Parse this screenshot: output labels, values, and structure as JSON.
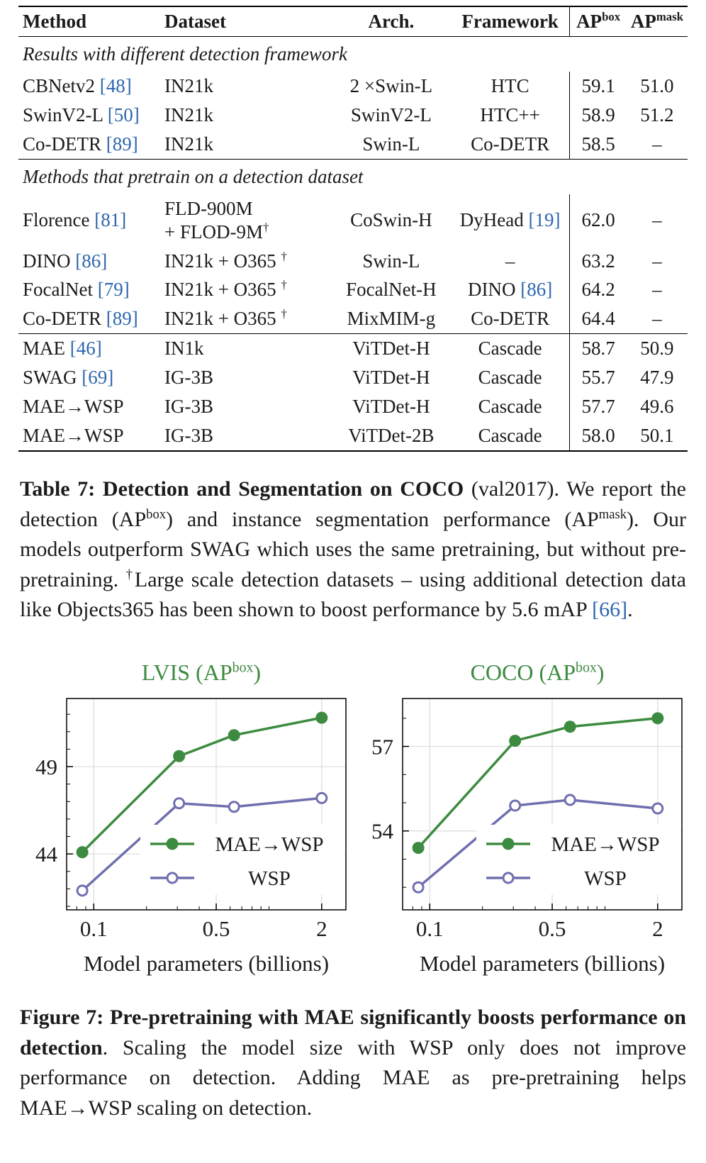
{
  "colors": {
    "citation_blue": "#2d66ae",
    "chart_title_green": "#3d8b40",
    "mae_wsp_green": "#3d8b40",
    "wsp_purple": "#6f6fb0",
    "gridline_gray": "#dcdcdc"
  },
  "table": {
    "headers": [
      {
        "runs": [
          {
            "t": "Method",
            "b": true
          }
        ]
      },
      {
        "runs": [
          {
            "t": "Dataset",
            "b": true
          }
        ]
      },
      {
        "runs": [
          {
            "t": "Arch.",
            "b": true
          }
        ]
      },
      {
        "runs": [
          {
            "t": "Framework",
            "b": true
          }
        ]
      },
      {
        "runs": [
          {
            "t": "AP",
            "b": true
          },
          {
            "t": "box",
            "b": true,
            "sup": true
          }
        ]
      },
      {
        "runs": [
          {
            "t": "AP",
            "b": true
          },
          {
            "t": "mask",
            "b": true,
            "sup": true
          }
        ]
      }
    ],
    "sections": [
      {
        "title": "Results with different detection framework",
        "rows": [
          {
            "cells": [
              [
                {
                  "t": "CBNetv2 "
                },
                {
                  "t": "[48]",
                  "cite": true
                }
              ],
              [
                {
                  "t": "IN21k"
                }
              ],
              [
                {
                  "t": "2 ×Swin-L"
                }
              ],
              [
                {
                  "t": "HTC"
                }
              ],
              [
                {
                  "t": "59.1"
                }
              ],
              [
                {
                  "t": "51.0"
                }
              ]
            ]
          },
          {
            "cells": [
              [
                {
                  "t": "SwinV2-L "
                },
                {
                  "t": "[50]",
                  "cite": true
                }
              ],
              [
                {
                  "t": "IN21k"
                }
              ],
              [
                {
                  "t": "SwinV2-L"
                }
              ],
              [
                {
                  "t": "HTC++"
                }
              ],
              [
                {
                  "t": "58.9"
                }
              ],
              [
                {
                  "t": "51.2"
                }
              ]
            ]
          },
          {
            "cells": [
              [
                {
                  "t": "Co-DETR "
                },
                {
                  "t": "[89]",
                  "cite": true
                }
              ],
              [
                {
                  "t": "IN21k"
                }
              ],
              [
                {
                  "t": "Swin-L"
                }
              ],
              [
                {
                  "t": "Co-DETR"
                }
              ],
              [
                {
                  "t": "58.5"
                }
              ],
              [
                {
                  "t": "–"
                }
              ]
            ]
          }
        ]
      },
      {
        "title": "Methods that pretrain on a detection dataset",
        "rows": [
          {
            "cells": [
              [
                {
                  "t": "Florence "
                },
                {
                  "t": "[81]",
                  "cite": true
                }
              ],
              [
                {
                  "t": "FLD-900M"
                },
                {
                  "br": true
                },
                {
                  "t": "+ FLOD-9M"
                },
                {
                  "t": "†",
                  "sup": true
                }
              ],
              [
                {
                  "t": "CoSwin-H"
                }
              ],
              [
                {
                  "t": "DyHead "
                },
                {
                  "t": "[19]",
                  "cite": true
                }
              ],
              [
                {
                  "t": "62.0"
                }
              ],
              [
                {
                  "t": "–"
                }
              ]
            ]
          },
          {
            "cells": [
              [
                {
                  "t": "DINO "
                },
                {
                  "t": "[86]",
                  "cite": true
                }
              ],
              [
                {
                  "t": "IN21k + O365 "
                },
                {
                  "t": "†",
                  "sup": true
                }
              ],
              [
                {
                  "t": "Swin-L"
                }
              ],
              [
                {
                  "t": "–"
                }
              ],
              [
                {
                  "t": "63.2"
                }
              ],
              [
                {
                  "t": "–"
                }
              ]
            ]
          },
          {
            "cells": [
              [
                {
                  "t": "FocalNet "
                },
                {
                  "t": "[79]",
                  "cite": true
                }
              ],
              [
                {
                  "t": "IN21k + O365 "
                },
                {
                  "t": "†",
                  "sup": true
                }
              ],
              [
                {
                  "t": "FocalNet-H"
                }
              ],
              [
                {
                  "t": "DINO "
                },
                {
                  "t": "[86]",
                  "cite": true
                }
              ],
              [
                {
                  "t": "64.2"
                }
              ],
              [
                {
                  "t": "–"
                }
              ]
            ]
          },
          {
            "cells": [
              [
                {
                  "t": "Co-DETR "
                },
                {
                  "t": "[89]",
                  "cite": true
                }
              ],
              [
                {
                  "t": "IN21k + O365 "
                },
                {
                  "t": "†",
                  "sup": true
                }
              ],
              [
                {
                  "t": "MixMIM-g"
                }
              ],
              [
                {
                  "t": "Co-DETR"
                }
              ],
              [
                {
                  "t": "64.4"
                }
              ],
              [
                {
                  "t": "–"
                }
              ]
            ]
          }
        ]
      },
      {
        "title": null,
        "rows": [
          {
            "cells": [
              [
                {
                  "t": "MAE "
                },
                {
                  "t": "[46]",
                  "cite": true
                }
              ],
              [
                {
                  "t": "IN1k"
                }
              ],
              [
                {
                  "t": "ViTDet-H"
                }
              ],
              [
                {
                  "t": "Cascade"
                }
              ],
              [
                {
                  "t": "58.7"
                }
              ],
              [
                {
                  "t": "50.9"
                }
              ]
            ]
          },
          {
            "cells": [
              [
                {
                  "t": "SWAG "
                },
                {
                  "t": "[69]",
                  "cite": true
                }
              ],
              [
                {
                  "t": "IG-3B"
                }
              ],
              [
                {
                  "t": "ViTDet-H"
                }
              ],
              [
                {
                  "t": "Cascade"
                }
              ],
              [
                {
                  "t": "55.7"
                }
              ],
              [
                {
                  "t": "47.9"
                }
              ]
            ]
          },
          {
            "cells": [
              [
                {
                  "t": "MAE→WSP"
                }
              ],
              [
                {
                  "t": "IG-3B"
                }
              ],
              [
                {
                  "t": "ViTDet-H"
                }
              ],
              [
                {
                  "t": "Cascade"
                }
              ],
              [
                {
                  "t": "57.7"
                }
              ],
              [
                {
                  "t": "49.6"
                }
              ]
            ]
          },
          {
            "cells": [
              [
                {
                  "t": "MAE→WSP"
                }
              ],
              [
                {
                  "t": "IG-3B"
                }
              ],
              [
                {
                  "t": "ViTDet-2B"
                }
              ],
              [
                {
                  "t": "Cascade"
                }
              ],
              [
                {
                  "t": "58.0"
                }
              ],
              [
                {
                  "t": "50.1"
                }
              ]
            ]
          }
        ]
      }
    ]
  },
  "table_caption": {
    "runs": [
      {
        "t": "Table 7: ",
        "b": true
      },
      {
        "t": "Detection and Segmentation on COCO",
        "b": true
      },
      {
        "t": " (val2017). We report the detection (AP"
      },
      {
        "t": "box",
        "sup": true
      },
      {
        "t": ") and instance segmentation performance (AP"
      },
      {
        "t": "mask",
        "sup": true
      },
      {
        "t": "). Our models outperform SWAG which uses the same pretraining, but without pre-pretraining. "
      },
      {
        "t": "†",
        "sup": true
      },
      {
        "t": "Large scale detection datasets – using additional detection data like Objects365 has been shown to boost performance by 5.6 mAP "
      },
      {
        "t": "[66]",
        "cite": true
      },
      {
        "t": "."
      }
    ]
  },
  "chart_data": [
    {
      "type": "line",
      "title": "LVIS (AP box)",
      "title_runs": [
        {
          "t": "LVIS (AP"
        },
        {
          "t": "box",
          "sup": true
        },
        {
          "t": ")"
        }
      ],
      "xlabel": "Model parameters (billions)",
      "xscale": "log",
      "x": [
        0.086,
        0.307,
        0.632,
        2.0
      ],
      "xlim": [
        0.07,
        2.75
      ],
      "ylim": [
        40.8,
        52.9
      ],
      "xticks": [
        0.1,
        0.5,
        2
      ],
      "xminor": [
        0.08,
        0.09,
        0.2,
        0.3,
        0.4,
        0.6,
        0.7,
        0.8,
        0.9,
        1
      ],
      "yticks": [
        44,
        49
      ],
      "grid": "major",
      "legend_position": "lower right",
      "series": [
        {
          "name": "MAE→WSP",
          "values": [
            44.1,
            49.6,
            50.8,
            51.8
          ],
          "color": "#3d8b40",
          "marker": "filled"
        },
        {
          "name": "WSP",
          "values": [
            41.9,
            46.9,
            46.7,
            47.2
          ],
          "color": "#6f6fb0",
          "marker": "open"
        }
      ]
    },
    {
      "type": "line",
      "title": "COCO (AP box)",
      "title_runs": [
        {
          "t": "COCO (AP"
        },
        {
          "t": "box",
          "sup": true
        },
        {
          "t": ")"
        }
      ],
      "xlabel": "Model parameters (billions)",
      "xscale": "log",
      "x": [
        0.086,
        0.307,
        0.632,
        2.0
      ],
      "xlim": [
        0.07,
        2.75
      ],
      "ylim": [
        51.2,
        58.7
      ],
      "xticks": [
        0.1,
        0.5,
        2
      ],
      "xminor": [
        0.08,
        0.09,
        0.2,
        0.3,
        0.4,
        0.6,
        0.7,
        0.8,
        0.9,
        1
      ],
      "yticks": [
        54,
        57
      ],
      "grid": "major",
      "legend_position": "lower right",
      "series": [
        {
          "name": "MAE→WSP",
          "values": [
            53.4,
            57.2,
            57.7,
            58.0
          ],
          "color": "#3d8b40",
          "marker": "filled"
        },
        {
          "name": "WSP",
          "values": [
            52.0,
            54.9,
            55.1,
            54.8
          ],
          "color": "#6f6fb0",
          "marker": "open"
        }
      ]
    }
  ],
  "figure_caption": {
    "runs": [
      {
        "t": "Figure 7: ",
        "b": true
      },
      {
        "t": "Pre-pretraining with MAE significantly boosts performance on detection",
        "b": true
      },
      {
        "t": ". Scaling the model size with WSP only does not improve performance on detection. Adding MAE as pre-pretraining helps MAE→WSP scaling on detection."
      }
    ]
  }
}
